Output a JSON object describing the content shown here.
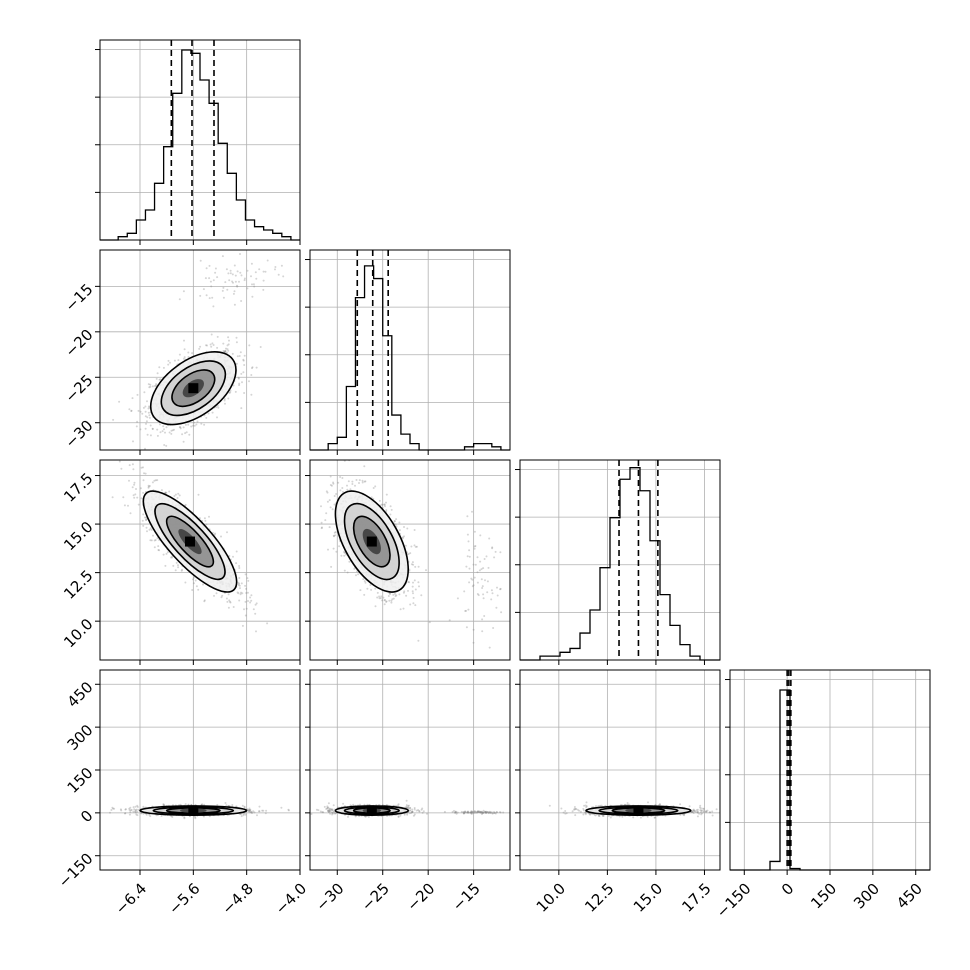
{
  "chart_data": {
    "type": "corner",
    "title": "",
    "params": [
      {
        "range": [
          -7.0,
          -4.0
        ],
        "ticks": [
          -6.4,
          -5.6,
          -4.8,
          -4.0
        ],
        "tick_labels": [
          "−6.4",
          "−5.6",
          "−4.8",
          "−4.0"
        ],
        "quantiles": [
          -5.93,
          -5.62,
          -5.29
        ]
      },
      {
        "range": [
          -33,
          -11
        ],
        "ticks": [
          -30,
          -25,
          -20,
          -15
        ],
        "tick_labels": [
          "−30",
          "−25",
          "−20",
          "−15"
        ],
        "quantiles": [
          -27.8,
          -26.1,
          -24.4
        ]
      },
      {
        "range": [
          8,
          18.3
        ],
        "ticks": [
          10.0,
          12.5,
          15.0,
          17.5
        ],
        "tick_labels": [
          "10.0",
          "12.5",
          "15.0",
          "17.5"
        ],
        "quantiles": [
          13.1,
          14.1,
          15.1
        ]
      },
      {
        "range": [
          -200,
          500
        ],
        "ticks": [
          -150,
          0,
          150,
          300,
          450
        ],
        "tick_labels": [
          "−150",
          "0",
          "150",
          "300",
          "450"
        ],
        "quantiles": [
          0,
          6,
          13
        ]
      }
    ],
    "histograms": [
      {
        "counts": [
          0,
          0,
          1,
          2,
          6,
          9,
          17,
          28,
          44,
          57,
          56,
          48,
          41,
          29,
          20,
          12,
          6,
          4,
          3,
          2,
          1,
          0
        ],
        "ylim": [
          0,
          60
        ]
      },
      {
        "counts": [
          0,
          0,
          2,
          4,
          20,
          48,
          58,
          54,
          36,
          11,
          5,
          2,
          0,
          0,
          0,
          0,
          0,
          1,
          2,
          2,
          1,
          0
        ],
        "ylim": [
          0,
          63
        ]
      },
      {
        "counts": [
          0,
          0,
          1,
          1,
          2,
          3,
          7,
          13,
          24,
          37,
          47,
          50,
          44,
          31,
          17,
          9,
          4,
          1,
          0,
          0
        ],
        "ylim": [
          0,
          52
        ]
      },
      {
        "counts": [
          0,
          0,
          0,
          0,
          3,
          63,
          0.5,
          0,
          0,
          0,
          0,
          0,
          0,
          0,
          0,
          0,
          0,
          0,
          0,
          0
        ],
        "ylim": [
          0,
          70
        ]
      }
    ],
    "pairs": [
      {
        "x": 0,
        "y": 1,
        "clusters": [
          {
            "mx": -5.6,
            "my": -26.2,
            "sx": 0.32,
            "sy": 2.0,
            "rho": 0.5,
            "w": 0.95
          },
          {
            "mx": -5.0,
            "my": -14.5,
            "sx": 0.33,
            "sy": 1.2,
            "rho": 0.3,
            "w": 0.05
          }
        ]
      },
      {
        "x": 0,
        "y": 2,
        "clusters": [
          {
            "mx": -5.65,
            "my": 14.1,
            "sx": 0.35,
            "sy": 1.3,
            "rho": -0.8,
            "w": 1.0
          }
        ]
      },
      {
        "x": 1,
        "y": 2,
        "clusters": [
          {
            "mx": -26.2,
            "my": 14.1,
            "sx": 2.0,
            "sy": 1.3,
            "rho": -0.55,
            "w": 0.95
          },
          {
            "mx": -14.5,
            "my": 12.0,
            "sx": 1.2,
            "sy": 1.3,
            "rho": 0.0,
            "w": 0.05
          }
        ]
      },
      {
        "x": 0,
        "y": 3,
        "clusters": [
          {
            "mx": -5.6,
            "my": 8,
            "sx": 0.4,
            "sy": 8,
            "rho": 0.0,
            "w": 1.0
          }
        ]
      },
      {
        "x": 1,
        "y": 3,
        "clusters": [
          {
            "mx": -26.2,
            "my": 8,
            "sx": 2.0,
            "sy": 8,
            "rho": 0.0,
            "w": 0.93
          },
          {
            "mx": -14.5,
            "my": 2,
            "sx": 1.4,
            "sy": 2.5,
            "rho": 0.0,
            "w": 0.07
          }
        ]
      },
      {
        "x": 2,
        "y": 3,
        "clusters": [
          {
            "mx": 14.1,
            "my": 8,
            "sx": 1.35,
            "sy": 8,
            "rho": 0.0,
            "w": 1.0
          }
        ]
      }
    ],
    "grid": true,
    "colors": {
      "line": "#000000",
      "points": "#888888",
      "grid": "#b0b0b0"
    }
  }
}
